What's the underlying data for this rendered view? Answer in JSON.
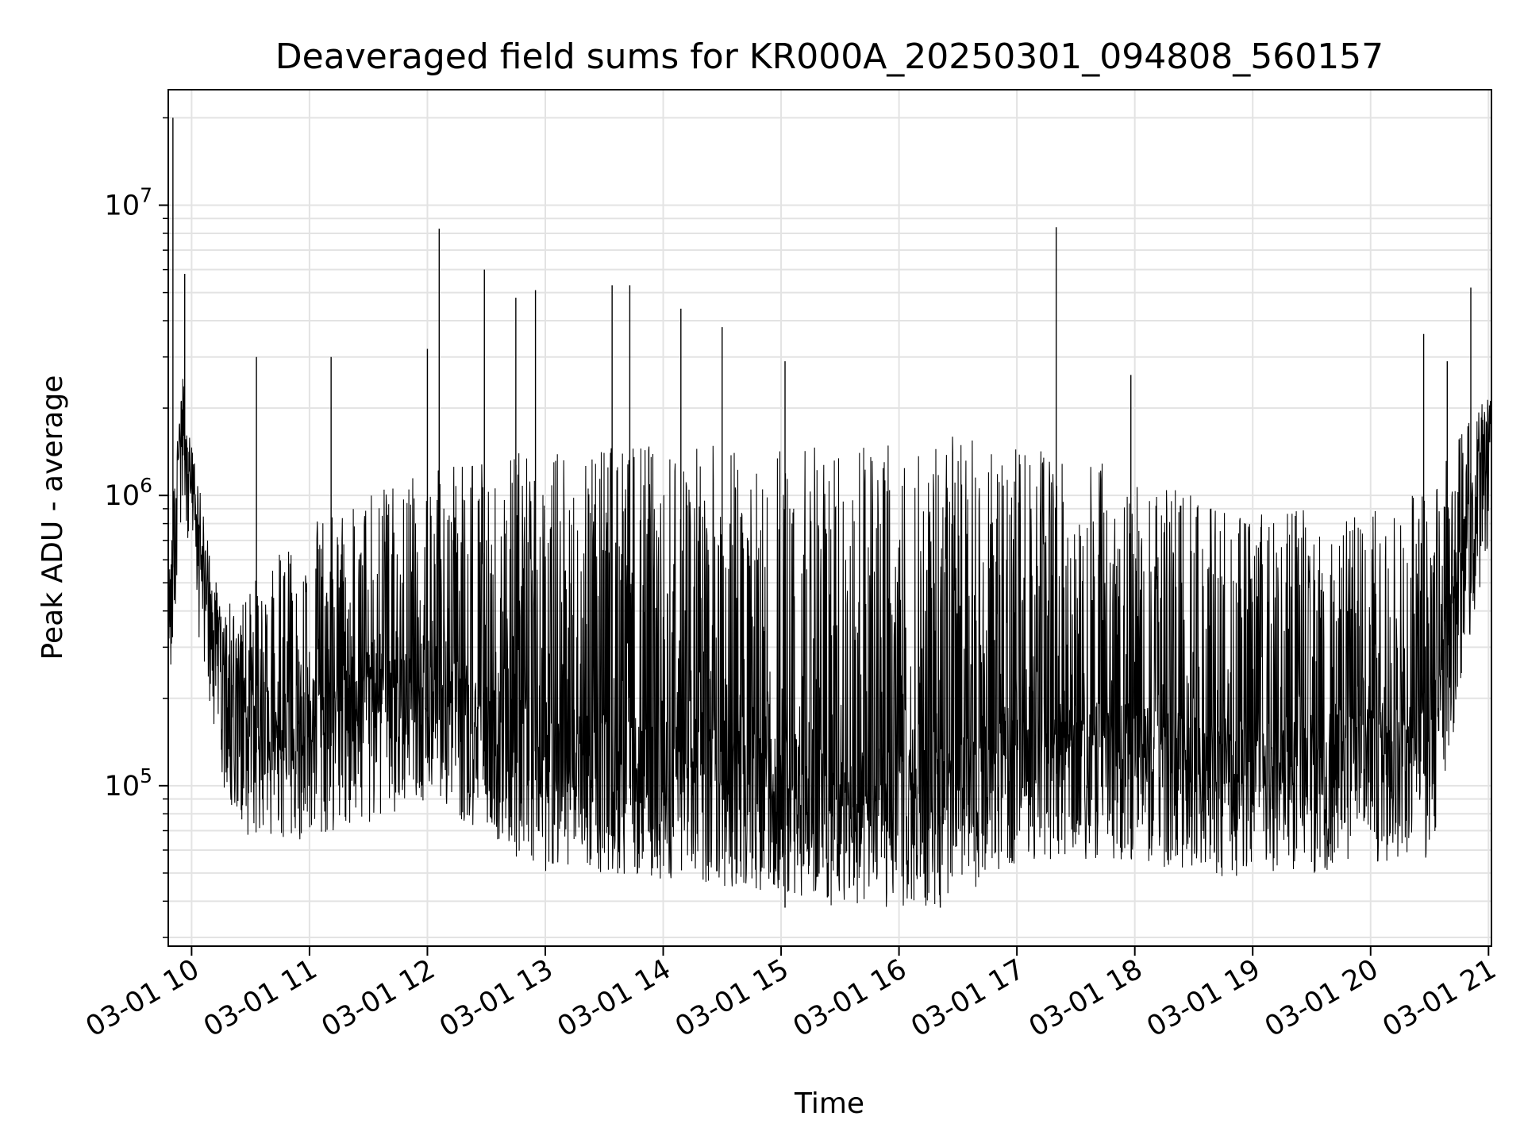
{
  "chart_data": {
    "type": "line",
    "title": "Deaveraged field sums for KR000A_20250301_094808_560157",
    "xlabel": "Time",
    "ylabel": "Peak ADU - average",
    "yscale": "log",
    "ylim": [
      28000,
      25000000
    ],
    "xlim": [
      "2025-03-01 09:48:08",
      "2025-03-01 21:01:30"
    ],
    "x_ticks": [
      {
        "label": "03-01 10",
        "time": "2025-03-01 10:00"
      },
      {
        "label": "03-01 11",
        "time": "2025-03-01 11:00"
      },
      {
        "label": "03-01 12",
        "time": "2025-03-01 12:00"
      },
      {
        "label": "03-01 13",
        "time": "2025-03-01 13:00"
      },
      {
        "label": "03-01 14",
        "time": "2025-03-01 14:00"
      },
      {
        "label": "03-01 15",
        "time": "2025-03-01 15:00"
      },
      {
        "label": "03-01 16",
        "time": "2025-03-01 16:00"
      },
      {
        "label": "03-01 17",
        "time": "2025-03-01 17:00"
      },
      {
        "label": "03-01 18",
        "time": "2025-03-01 18:00"
      },
      {
        "label": "03-01 19",
        "time": "2025-03-01 19:00"
      },
      {
        "label": "03-01 20",
        "time": "2025-03-01 20:00"
      },
      {
        "label": "03-01 21",
        "time": "2025-03-01 21:00"
      }
    ],
    "y_ticks": [
      {
        "base": "10",
        "exp": "5",
        "value": 100000
      },
      {
        "base": "10",
        "exp": "6",
        "value": 1000000
      },
      {
        "base": "10",
        "exp": "7",
        "value": 10000000
      }
    ],
    "grid": true,
    "line_color": "#000000",
    "x": [
      "2025-03-01 09:49",
      "2025-03-01 09:55",
      "2025-03-01 10:05",
      "2025-03-01 10:15",
      "2025-03-01 10:30",
      "2025-03-01 11:00",
      "2025-03-01 11:30",
      "2025-03-01 12:00",
      "2025-03-01 12:30",
      "2025-03-01 13:00",
      "2025-03-01 13:30",
      "2025-03-01 14:00",
      "2025-03-01 14:30",
      "2025-03-01 15:00",
      "2025-03-01 15:30",
      "2025-03-01 16:00",
      "2025-03-01 16:30",
      "2025-03-01 17:00",
      "2025-03-01 17:30",
      "2025-03-01 18:00",
      "2025-03-01 18:30",
      "2025-03-01 19:00",
      "2025-03-01 19:30",
      "2025-03-01 20:00",
      "2025-03-01 20:30",
      "2025-03-01 21:00"
    ],
    "series": [
      {
        "baseline": [
          400000,
          1600000,
          450000,
          200000,
          130000,
          130000,
          150000,
          180000,
          130000,
          100000,
          100000,
          95000,
          90000,
          85000,
          75000,
          75000,
          80000,
          110000,
          110000,
          110000,
          100000,
          95000,
          100000,
          110000,
          110000,
          1400000
        ],
        "upper": [
          700000,
          2200000,
          1000000,
          400000,
          500000,
          800000,
          1000000,
          1200000,
          1400000,
          1400000,
          1500000,
          1500000,
          1500000,
          1500000,
          1500000,
          1550000,
          1600000,
          1500000,
          1400000,
          1200000,
          1000000,
          900000,
          900000,
          900000,
          1100000,
          2300000
        ]
      }
    ],
    "peaks": [
      {
        "x": "2025-03-01 09:50:30",
        "y": 20000000
      },
      {
        "x": "2025-03-01 09:56:30",
        "y": 5800000
      },
      {
        "x": "2025-03-01 10:33",
        "y": 3000000
      },
      {
        "x": "2025-03-01 11:11",
        "y": 3000000
      },
      {
        "x": "2025-03-01 12:00",
        "y": 3200000
      },
      {
        "x": "2025-03-01 12:06",
        "y": 8300000
      },
      {
        "x": "2025-03-01 12:29",
        "y": 6000000
      },
      {
        "x": "2025-03-01 12:45",
        "y": 4800000
      },
      {
        "x": "2025-03-01 12:55",
        "y": 5100000
      },
      {
        "x": "2025-03-01 13:34",
        "y": 5300000
      },
      {
        "x": "2025-03-01 13:43",
        "y": 5300000
      },
      {
        "x": "2025-03-01 14:09",
        "y": 4400000
      },
      {
        "x": "2025-03-01 14:30",
        "y": 3800000
      },
      {
        "x": "2025-03-01 15:02",
        "y": 2900000
      },
      {
        "x": "2025-03-01 17:20",
        "y": 8400000
      },
      {
        "x": "2025-03-01 17:58",
        "y": 2600000
      },
      {
        "x": "2025-03-01 20:27",
        "y": 3600000
      },
      {
        "x": "2025-03-01 20:39",
        "y": 2900000
      },
      {
        "x": "2025-03-01 20:51",
        "y": 5200000
      }
    ],
    "dips": [
      {
        "x": "2025-03-01 15:02",
        "y": 38000
      },
      {
        "x": "2025-03-01 16:21",
        "y": 38000
      }
    ]
  }
}
